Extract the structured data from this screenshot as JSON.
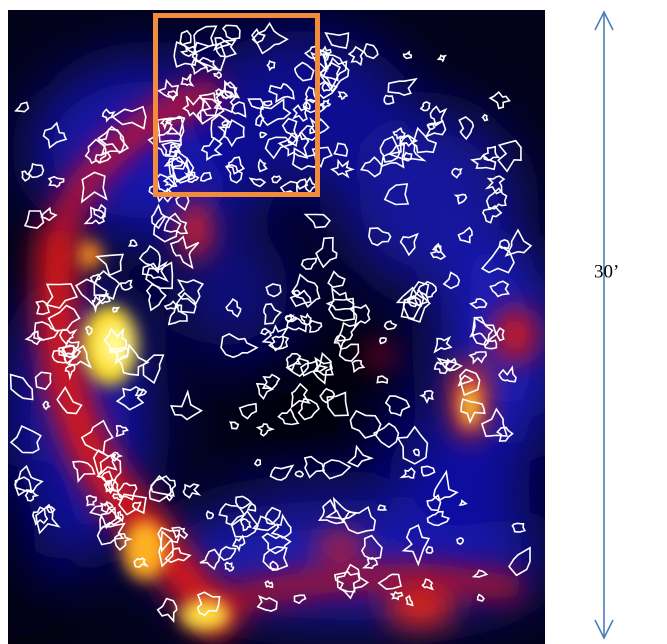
{
  "image": {
    "scale_label": "30’"
  }
}
